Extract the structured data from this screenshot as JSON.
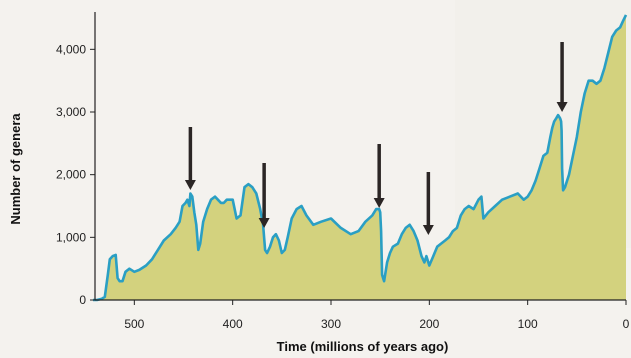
{
  "chart_data": {
    "type": "area",
    "title": "",
    "xlabel": "Time (millions of years ago)",
    "ylabel": "Number of genera",
    "xlim": [
      540,
      0
    ],
    "ylim": [
      0,
      4500
    ],
    "x_ticks": [
      500,
      400,
      300,
      200,
      100,
      0
    ],
    "y_ticks": [
      0,
      1000,
      2000,
      3000,
      4000
    ],
    "x_tick_labels": [
      "500",
      "400",
      "300",
      "200",
      "100",
      "0"
    ],
    "y_tick_labels": [
      "0",
      "1,000",
      "2,000",
      "3,000",
      "4,000"
    ],
    "grid": false,
    "legend": "none",
    "colors": {
      "fill": "#d3d27e",
      "line": "#2a9fc4",
      "arrow": "#2b2625",
      "background": "#f4f2ee"
    },
    "series": [
      {
        "x": [
          542,
          538,
          533,
          530,
          527,
          525,
          522,
          519,
          517,
          515,
          512,
          509,
          505,
          500,
          495,
          488,
          482,
          476,
          470,
          463,
          458,
          454,
          451,
          448,
          446,
          444,
          443,
          441,
          439,
          437,
          435,
          433,
          430,
          426,
          422,
          418,
          415,
          412,
          409,
          406,
          403,
          400,
          396,
          392,
          388,
          384,
          380,
          376,
          372,
          369,
          367,
          365,
          362,
          359,
          356,
          353,
          350,
          347,
          344,
          340,
          335,
          330,
          325,
          318,
          310,
          300,
          290,
          280,
          272,
          265,
          258,
          254,
          251,
          250,
          249,
          248,
          246,
          243,
          240,
          237,
          232,
          228,
          224,
          220,
          216,
          212,
          208,
          205,
          203,
          200,
          196,
          192,
          188,
          184,
          180,
          176,
          172,
          168,
          164,
          160,
          155,
          150,
          147,
          145,
          140,
          133,
          126,
          118,
          110,
          104,
          100,
          96,
          92,
          88,
          84,
          80,
          77,
          75,
          73,
          71,
          69,
          67,
          66,
          65.5,
          65,
          64,
          62,
          58,
          54,
          50,
          46,
          42,
          38,
          34,
          30,
          26,
          22,
          18,
          14,
          10,
          6,
          3,
          0
        ],
        "values": [
          0,
          0,
          20,
          50,
          400,
          650,
          700,
          720,
          350,
          300,
          300,
          450,
          500,
          450,
          480,
          550,
          650,
          800,
          950,
          1050,
          1150,
          1250,
          1500,
          1550,
          1600,
          1500,
          1700,
          1650,
          1400,
          1200,
          800,
          900,
          1250,
          1450,
          1600,
          1650,
          1600,
          1550,
          1550,
          1600,
          1600,
          1600,
          1300,
          1350,
          1800,
          1850,
          1800,
          1700,
          1450,
          1200,
          800,
          750,
          850,
          1000,
          1050,
          950,
          750,
          800,
          1000,
          1300,
          1450,
          1500,
          1350,
          1200,
          1250,
          1300,
          1150,
          1050,
          1100,
          1250,
          1350,
          1450,
          1450,
          1400,
          1100,
          400,
          300,
          600,
          750,
          850,
          900,
          1050,
          1150,
          1200,
          1100,
          950,
          700,
          600,
          700,
          550,
          700,
          850,
          900,
          950,
          1000,
          1100,
          1150,
          1350,
          1450,
          1500,
          1450,
          1600,
          1650,
          1300,
          1400,
          1500,
          1600,
          1650,
          1700,
          1600,
          1650,
          1750,
          1900,
          2100,
          2300,
          2350,
          2600,
          2750,
          2850,
          2900,
          2950,
          2900,
          2850,
          2700,
          2100,
          1750,
          1800,
          2000,
          2300,
          2600,
          3000,
          3300,
          3500,
          3500,
          3450,
          3500,
          3700,
          3950,
          4200,
          4300,
          4350,
          4450,
          4550
        ]
      }
    ],
    "arrows_at_mya": [
      443,
      368,
      251,
      201,
      65
    ]
  }
}
